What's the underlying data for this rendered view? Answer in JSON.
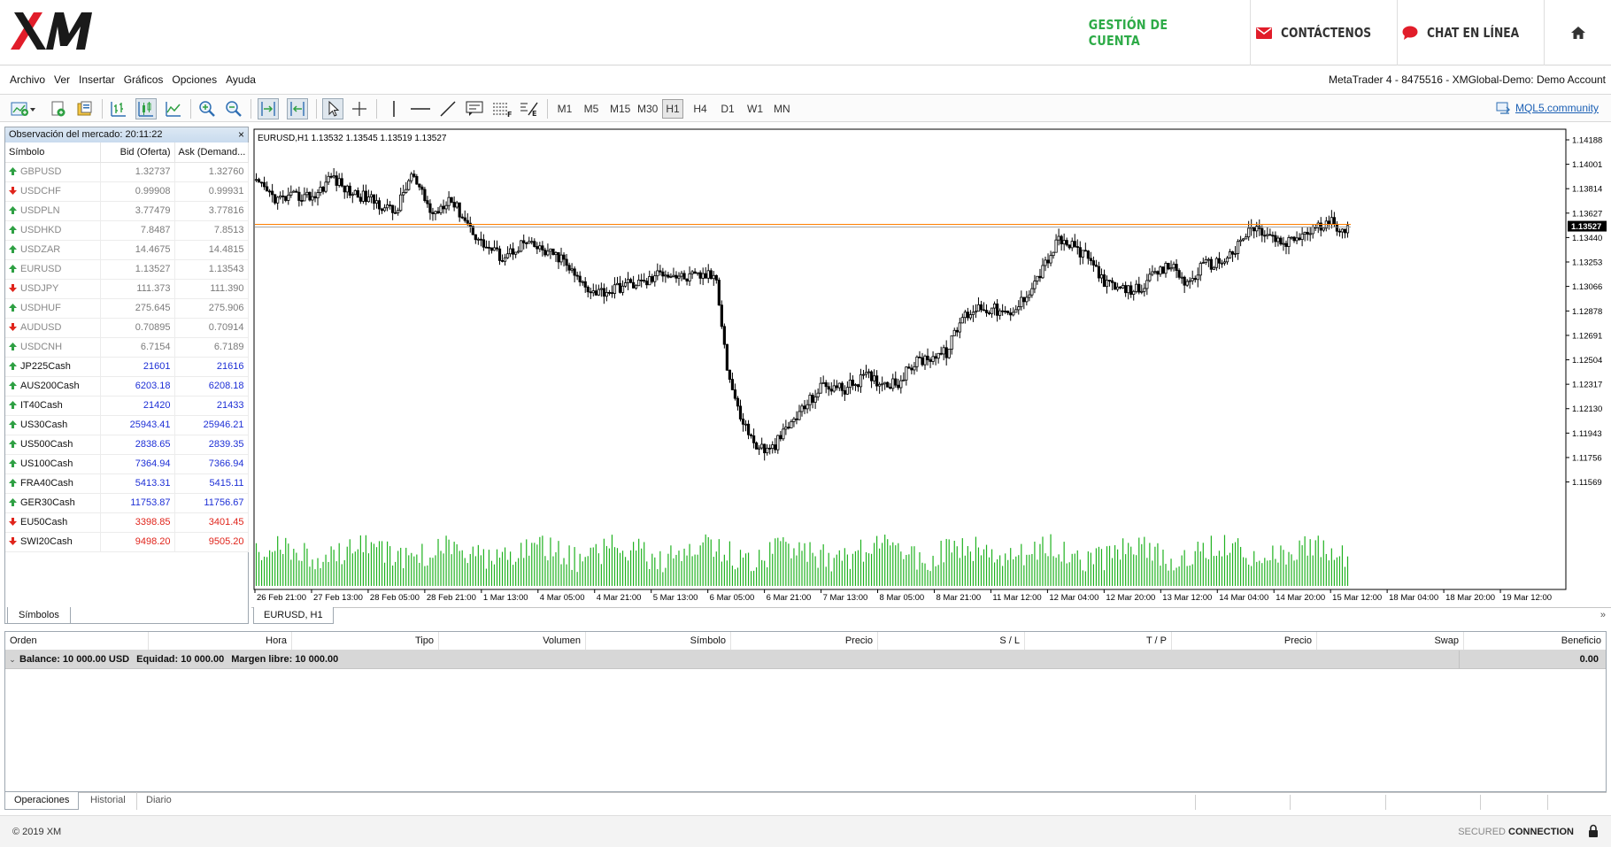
{
  "brand": {
    "nav_account": "GESTIÓN DE CUENTA",
    "nav_contact": "CONTÁCTENOS",
    "nav_chat": "CHAT EN LÍNEA",
    "colors": {
      "accent_green": "#2eab48",
      "brand_red": "#e11d2a"
    },
    "icons": {
      "logo": "xm-logo",
      "contact": "envelope-icon",
      "chat": "chat-bubble-icon",
      "home": "home-icon"
    }
  },
  "menu": {
    "items": [
      "Archivo",
      "Ver",
      "Insertar",
      "Gráficos",
      "Opciones",
      "Ayuda"
    ],
    "window_title": "MetaTrader 4 - 8475516 - XMGlobal-Demo: Demo Account"
  },
  "toolbar": {
    "timeframes": [
      "M1",
      "M5",
      "M15",
      "M30",
      "H1",
      "H4",
      "D1",
      "W1",
      "MN"
    ],
    "active_timeframe": "H1",
    "mql5_label": "MQL5.community"
  },
  "market_watch": {
    "title": "Observación del mercado: 20:11:22",
    "close": "×",
    "columns": {
      "symbol": "Símbolo",
      "bid": "Bid (Oferta)",
      "ask": "Ask (Demand..."
    },
    "rows": [
      {
        "symbol": "GBPUSD",
        "bid": "1.32737",
        "ask": "1.32760",
        "dir": "up",
        "style": "grey"
      },
      {
        "symbol": "USDCHF",
        "bid": "0.99908",
        "ask": "0.99931",
        "dir": "down",
        "style": "grey"
      },
      {
        "symbol": "USDPLN",
        "bid": "3.77479",
        "ask": "3.77816",
        "dir": "up",
        "style": "grey"
      },
      {
        "symbol": "USDHKD",
        "bid": "7.8487",
        "ask": "7.8513",
        "dir": "up",
        "style": "grey"
      },
      {
        "symbol": "USDZAR",
        "bid": "14.4675",
        "ask": "14.4815",
        "dir": "up",
        "style": "grey"
      },
      {
        "symbol": "EURUSD",
        "bid": "1.13527",
        "ask": "1.13543",
        "dir": "up",
        "style": "grey"
      },
      {
        "symbol": "USDJPY",
        "bid": "111.373",
        "ask": "111.390",
        "dir": "down",
        "style": "grey"
      },
      {
        "symbol": "USDHUF",
        "bid": "275.645",
        "ask": "275.906",
        "dir": "up",
        "style": "grey"
      },
      {
        "symbol": "AUDUSD",
        "bid": "0.70895",
        "ask": "0.70914",
        "dir": "down",
        "style": "grey"
      },
      {
        "symbol": "USDCNH",
        "bid": "6.7154",
        "ask": "6.7189",
        "dir": "up",
        "style": "grey"
      },
      {
        "symbol": "JP225Cash",
        "bid": "21601",
        "ask": "21616",
        "dir": "up",
        "style": "blue"
      },
      {
        "symbol": "AUS200Cash",
        "bid": "6203.18",
        "ask": "6208.18",
        "dir": "up",
        "style": "blue"
      },
      {
        "symbol": "IT40Cash",
        "bid": "21420",
        "ask": "21433",
        "dir": "up",
        "style": "blue"
      },
      {
        "symbol": "US30Cash",
        "bid": "25943.41",
        "ask": "25946.21",
        "dir": "up",
        "style": "blue"
      },
      {
        "symbol": "US500Cash",
        "bid": "2838.65",
        "ask": "2839.35",
        "dir": "up",
        "style": "blue"
      },
      {
        "symbol": "US100Cash",
        "bid": "7364.94",
        "ask": "7366.94",
        "dir": "up",
        "style": "blue"
      },
      {
        "symbol": "FRA40Cash",
        "bid": "5413.31",
        "ask": "5415.11",
        "dir": "up",
        "style": "blue"
      },
      {
        "symbol": "GER30Cash",
        "bid": "11753.87",
        "ask": "11756.67",
        "dir": "up",
        "style": "blue"
      },
      {
        "symbol": "EU50Cash",
        "bid": "3398.85",
        "ask": "3401.45",
        "dir": "down",
        "style": "red"
      },
      {
        "symbol": "SWI20Cash",
        "bid": "9498.20",
        "ask": "9505.20",
        "dir": "down",
        "style": "red"
      }
    ],
    "tab": "Símbolos"
  },
  "chart": {
    "info": "EURUSD,H1  1.13532 1.13545 1.13519 1.13527",
    "tab_label": "EURUSD, H1",
    "scroll_glyph": "»",
    "price_labels": [
      "1.14188",
      "1.14001",
      "1.13814",
      "1.13627",
      "1.13440",
      "1.13253",
      "1.13066",
      "1.12878",
      "1.12691",
      "1.12504",
      "1.12317",
      "1.12130",
      "1.11943",
      "1.11756",
      "1.11569"
    ],
    "current_price": "1.13527",
    "time_labels": [
      "26 Feb 21:00",
      "27 Feb 13:00",
      "28 Feb 05:00",
      "28 Feb 21:00",
      "1 Mar 13:00",
      "4 Mar 05:00",
      "4 Mar 21:00",
      "5 Mar 13:00",
      "6 Mar 05:00",
      "6 Mar 21:00",
      "7 Mar 13:00",
      "8 Mar 05:00",
      "8 Mar 21:00",
      "11 Mar 12:00",
      "12 Mar 04:00",
      "12 Mar 20:00",
      "13 Mar 12:00",
      "14 Mar 04:00",
      "14 Mar 20:00",
      "15 Mar 12:00",
      "18 Mar 04:00",
      "18 Mar 20:00",
      "19 Mar 12:00"
    ],
    "colors": {
      "line": "#ff7f00",
      "volume": "#1fb21f",
      "candle": "#000000",
      "bg": "#ffffff"
    }
  },
  "chart_data": {
    "type": "line",
    "title": "EURUSD,H1",
    "ylim": [
      1.1148,
      1.1428
    ],
    "current_price": 1.13527,
    "y_ticks": [
      1.14188,
      1.14001,
      1.13814,
      1.13627,
      1.1344,
      1.13253,
      1.13066,
      1.12878,
      1.12691,
      1.12504,
      1.12317,
      1.1213,
      1.11943,
      1.11756,
      1.11569
    ],
    "x_ticks": [
      "26 Feb 21:00",
      "27 Feb 13:00",
      "28 Feb 05:00",
      "28 Feb 21:00",
      "1 Mar 13:00",
      "4 Mar 05:00",
      "4 Mar 21:00",
      "5 Mar 13:00",
      "6 Mar 05:00",
      "6 Mar 21:00",
      "7 Mar 13:00",
      "8 Mar 05:00",
      "8 Mar 21:00",
      "11 Mar 12:00",
      "12 Mar 04:00",
      "12 Mar 20:00",
      "13 Mar 12:00",
      "14 Mar 04:00",
      "14 Mar 20:00",
      "15 Mar 12:00",
      "18 Mar 04:00",
      "18 Mar 20:00",
      "19 Mar 12:00"
    ],
    "close_anchors": [
      [
        0,
        1.1385
      ],
      [
        8,
        1.1373
      ],
      [
        14,
        1.1375
      ],
      [
        22,
        1.1376
      ],
      [
        28,
        1.1391
      ],
      [
        34,
        1.138
      ],
      [
        44,
        1.1372
      ],
      [
        52,
        1.1363
      ],
      [
        58,
        1.1392
      ],
      [
        66,
        1.1361
      ],
      [
        72,
        1.1375
      ],
      [
        78,
        1.1358
      ],
      [
        84,
        1.134
      ],
      [
        92,
        1.1329
      ],
      [
        100,
        1.134
      ],
      [
        108,
        1.1333
      ],
      [
        114,
        1.1328
      ],
      [
        120,
        1.1312
      ],
      [
        126,
        1.1303
      ],
      [
        132,
        1.1303
      ],
      [
        138,
        1.1308
      ],
      [
        146,
        1.131
      ],
      [
        152,
        1.1318
      ],
      [
        160,
        1.1313
      ],
      [
        168,
        1.1315
      ],
      [
        172,
        1.1314
      ],
      [
        176,
        1.1244
      ],
      [
        180,
        1.1212
      ],
      [
        186,
        1.1186
      ],
      [
        192,
        1.118
      ],
      [
        200,
        1.1202
      ],
      [
        206,
        1.1217
      ],
      [
        212,
        1.1231
      ],
      [
        220,
        1.1228
      ],
      [
        228,
        1.1238
      ],
      [
        234,
        1.1233
      ],
      [
        240,
        1.1233
      ],
      [
        246,
        1.1248
      ],
      [
        252,
        1.1253
      ],
      [
        258,
        1.1256
      ],
      [
        264,
        1.1283
      ],
      [
        270,
        1.1291
      ],
      [
        276,
        1.1289
      ],
      [
        282,
        1.1283
      ],
      [
        288,
        1.1301
      ],
      [
        294,
        1.132
      ],
      [
        300,
        1.1342
      ],
      [
        306,
        1.1336
      ],
      [
        312,
        1.1326
      ],
      [
        318,
        1.1308
      ],
      [
        324,
        1.1303
      ],
      [
        330,
        1.1305
      ],
      [
        336,
        1.1315
      ],
      [
        342,
        1.1323
      ],
      [
        348,
        1.1308
      ],
      [
        354,
        1.1323
      ],
      [
        360,
        1.1325
      ],
      [
        366,
        1.1334
      ],
      [
        372,
        1.1352
      ],
      [
        378,
        1.1346
      ],
      [
        384,
        1.1338
      ],
      [
        390,
        1.1345
      ],
      [
        396,
        1.1351
      ],
      [
        402,
        1.1355
      ],
      [
        408,
        1.135
      ]
    ],
    "volume_max": 1
  },
  "terminal": {
    "columns": [
      "Orden",
      "Hora",
      "Tipo",
      "Volumen",
      "Símbolo",
      "Precio",
      "S / L",
      "T / P",
      "Precio",
      "Swap",
      "Beneficio"
    ],
    "balance": "Balance: 10 000.00 USD",
    "equity": "Equidad: 10 000.00",
    "free_margin": "Margen libre: 10 000.00",
    "profit": "0.00",
    "tabs": [
      "Operaciones",
      "Historial",
      "Diario"
    ]
  },
  "footer": {
    "copyright": "© 2019 XM",
    "secured_prefix": "SECURED",
    "secured_bold": "CONNECTION"
  }
}
